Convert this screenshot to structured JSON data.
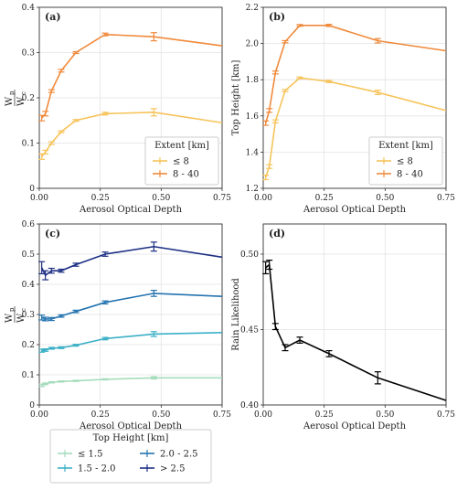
{
  "chart_data": [
    {
      "panel": "(a)",
      "type": "line",
      "xlabel": "Aerosol Optical Depth",
      "ylabel_main": "W",
      "ylabel_sub": "p",
      "ylabel_den_main": "W",
      "ylabel_den_sub": "c",
      "xlim": [
        0,
        0.75
      ],
      "ylim": [
        0,
        0.4
      ],
      "xticks": [
        "0.00",
        "0.25",
        "0.50",
        "0.75"
      ],
      "yticks": [
        "0",
        "0.1",
        "0.2",
        "0.3",
        "0.4"
      ],
      "ytick_values": [
        0,
        0.1,
        0.2,
        0.3,
        0.4
      ],
      "grid": true,
      "legend": {
        "title": "Extent [km]",
        "placement": "bottom-right"
      },
      "series": [
        {
          "name": "≤ 8",
          "color": "#f7c35a",
          "x": [
            0.01,
            0.025,
            0.05,
            0.09,
            0.15,
            0.27,
            0.47,
            0.75
          ],
          "y": [
            0.07,
            0.08,
            0.1,
            0.125,
            0.15,
            0.165,
            0.168,
            0.145
          ],
          "err": [
            0.006,
            0.004,
            0.003,
            0.002,
            0.002,
            0.003,
            0.008,
            0
          ]
        },
        {
          "name": "8 - 40",
          "color": "#f08a3c",
          "x": [
            0.01,
            0.025,
            0.05,
            0.09,
            0.15,
            0.27,
            0.47,
            0.75
          ],
          "y": [
            0.155,
            0.165,
            0.215,
            0.26,
            0.3,
            0.34,
            0.335,
            0.315
          ],
          "err": [
            0.006,
            0.005,
            0.003,
            0.003,
            0.002,
            0.003,
            0.009,
            0
          ]
        }
      ]
    },
    {
      "panel": "(b)",
      "type": "line",
      "xlabel": "Aerosol Optical Depth",
      "ylabel": "Top Height [km]",
      "xlim": [
        0,
        0.75
      ],
      "ylim": [
        1.2,
        2.2
      ],
      "xticks": [
        "0.00",
        "0.25",
        "0.50",
        "0.75"
      ],
      "yticks": [
        "1.2",
        "1.4",
        "1.6",
        "1.8",
        "2.0",
        "2.2"
      ],
      "ytick_values": [
        1.2,
        1.4,
        1.6,
        1.8,
        2.0,
        2.2
      ],
      "grid": true,
      "legend": {
        "title": "Extent [km]",
        "placement": "bottom-right"
      },
      "series": [
        {
          "name": "≤ 8",
          "color": "#f7c35a",
          "x": [
            0.01,
            0.025,
            0.05,
            0.09,
            0.15,
            0.27,
            0.47,
            0.75
          ],
          "y": [
            1.26,
            1.32,
            1.57,
            1.74,
            1.81,
            1.79,
            1.73,
            1.63
          ],
          "err": [
            0.012,
            0.01,
            0.008,
            0.006,
            0.005,
            0.006,
            0.012,
            0
          ]
        },
        {
          "name": "8 - 40",
          "color": "#f08a3c",
          "x": [
            0.01,
            0.025,
            0.05,
            0.09,
            0.15,
            0.27,
            0.47,
            0.75
          ],
          "y": [
            1.56,
            1.63,
            1.84,
            2.01,
            2.1,
            2.1,
            2.015,
            1.96
          ],
          "err": [
            0.012,
            0.01,
            0.008,
            0.006,
            0.005,
            0.006,
            0.012,
            0
          ]
        }
      ]
    },
    {
      "panel": "(c)",
      "type": "line",
      "xlabel": "Aerosol Optical Depth",
      "ylabel_main": "W",
      "ylabel_sub": "p",
      "ylabel_den_main": "W",
      "ylabel_den_sub": "c",
      "xlim": [
        0,
        0.75
      ],
      "ylim": [
        0,
        0.6
      ],
      "xticks": [
        "0.00",
        "0.25",
        "0.50",
        "0.75"
      ],
      "yticks": [
        "0",
        "0.1",
        "0.2",
        "0.3",
        "0.4",
        "0.5",
        "0.6"
      ],
      "ytick_values": [
        0,
        0.1,
        0.2,
        0.3,
        0.4,
        0.5,
        0.6
      ],
      "grid": true,
      "legend": {
        "title": "Top Height [km]",
        "placement": "below",
        "columns": 2
      },
      "series": [
        {
          "name": "≤ 1.5",
          "color": "#a6dcbc",
          "x": [
            0.01,
            0.025,
            0.05,
            0.09,
            0.15,
            0.27,
            0.47,
            0.75
          ],
          "y": [
            0.065,
            0.07,
            0.075,
            0.078,
            0.08,
            0.085,
            0.09,
            0.09
          ],
          "err": [
            0.004,
            0.003,
            0.002,
            0.002,
            0.002,
            0.002,
            0.004,
            0
          ]
        },
        {
          "name": "1.5 - 2.0",
          "color": "#3bb0c6",
          "x": [
            0.01,
            0.025,
            0.05,
            0.09,
            0.15,
            0.27,
            0.47,
            0.75
          ],
          "y": [
            0.18,
            0.182,
            0.188,
            0.19,
            0.198,
            0.22,
            0.235,
            0.24
          ],
          "err": [
            0.005,
            0.004,
            0.003,
            0.003,
            0.003,
            0.004,
            0.008,
            0
          ]
        },
        {
          "name": "2.0 - 2.5",
          "color": "#2474b0",
          "x": [
            0.01,
            0.025,
            0.05,
            0.09,
            0.15,
            0.27,
            0.47,
            0.75
          ],
          "y": [
            0.29,
            0.285,
            0.285,
            0.295,
            0.31,
            0.34,
            0.37,
            0.36
          ],
          "err": [
            0.008,
            0.006,
            0.005,
            0.004,
            0.004,
            0.005,
            0.01,
            0
          ]
        },
        {
          "name": "> 2.5",
          "color": "#1d2f85",
          "x": [
            0.01,
            0.025,
            0.05,
            0.09,
            0.15,
            0.27,
            0.47,
            0.75
          ],
          "y": [
            0.455,
            0.43,
            0.445,
            0.445,
            0.465,
            0.5,
            0.525,
            0.49
          ],
          "err": [
            0.02,
            0.015,
            0.008,
            0.005,
            0.005,
            0.007,
            0.015,
            0
          ]
        }
      ]
    },
    {
      "panel": "(d)",
      "type": "line",
      "xlabel": "Aerosol Optical Depth",
      "ylabel": "Rain Likelihood",
      "xlim": [
        0,
        0.75
      ],
      "ylim": [
        0.4,
        0.52
      ],
      "xticks": [
        "0.00",
        "0.25",
        "0.50",
        "0.75"
      ],
      "yticks": [
        "0.40",
        "0.45",
        "0.50"
      ],
      "ytick_values": [
        0.4,
        0.45,
        0.5
      ],
      "grid": true,
      "legend": null,
      "series": [
        {
          "name": "",
          "color": "#000000",
          "x": [
            0.01,
            0.025,
            0.05,
            0.09,
            0.15,
            0.27,
            0.47,
            0.75
          ],
          "y": [
            0.491,
            0.493,
            0.452,
            0.438,
            0.443,
            0.434,
            0.418,
            0.403
          ],
          "err": [
            0.004,
            0.003,
            0.002,
            0.002,
            0.002,
            0.002,
            0.004,
            0
          ]
        }
      ]
    }
  ]
}
